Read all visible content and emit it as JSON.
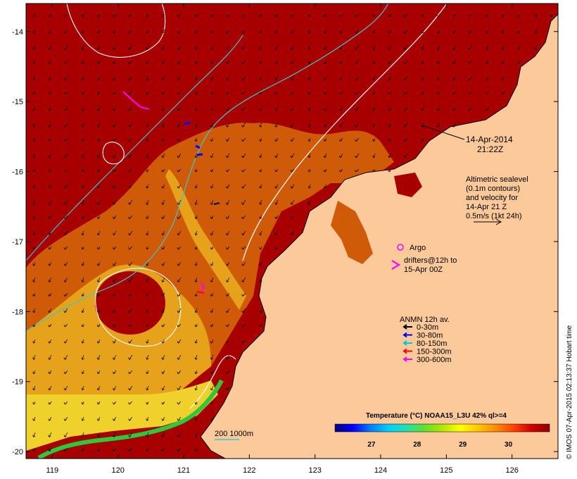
{
  "map": {
    "lon_range": [
      118.6,
      126.7
    ],
    "lat_range": [
      -20.1,
      -13.6
    ],
    "x_ticks": [
      119,
      120,
      121,
      122,
      123,
      124,
      125,
      126
    ],
    "y_ticks": [
      -14,
      -15,
      -16,
      -17,
      -18,
      -19,
      -20
    ],
    "x_tick_labels": [
      "119",
      "120",
      "121",
      "122",
      "123",
      "124",
      "125",
      "126"
    ],
    "y_tick_labels": [
      "-14",
      "-15",
      "-16",
      "-17",
      "-18",
      "-19",
      "-20"
    ],
    "colors": {
      "land": "#fbc99a",
      "sea_warm": "#a80000",
      "sea_mid": "#cf5a08",
      "sea_cool": "#e5a21a",
      "sea_coast": "#f0d02a",
      "coast_band": "#2fc83a",
      "contour_200": "#3cc8c8",
      "contour_1000": "#ffffff"
    }
  },
  "annotations": {
    "date_line1": "14-Apr-2014",
    "date_line2": "21:22Z",
    "altimetry_line1": "Altimetric sealevel",
    "altimetry_line2": "(0.1m contours)",
    "altimetry_line3": "and velocity for",
    "altimetry_line4": "14-Apr 21 Z",
    "altimetry_line5": "0.5m/s (1kt 24h)",
    "argo_label": "Argo",
    "drifters_line1": "drifters@12h to",
    "drifters_line2": "15-Apr 00Z",
    "anmn_title": "ANMN 12h av.",
    "depth_label": "200  1000m"
  },
  "anmn_legend": [
    {
      "label": "0-30m",
      "color": "#000000"
    },
    {
      "label": "30-80m",
      "color": "#0000ff"
    },
    {
      "label": "80-150m",
      "color": "#00c8c8"
    },
    {
      "label": "150-300m",
      "color": "#ff0000"
    },
    {
      "label": "300-600m",
      "color": "#ff00ff"
    }
  ],
  "colorbar": {
    "title": "Temperature (°C) NOAA15_L3U 42% ql>=4",
    "ticks": [
      "27",
      "28",
      "29",
      "30"
    ],
    "tick_values": [
      27,
      28,
      29,
      30
    ],
    "range": [
      26.2,
      30.9
    ],
    "colors": [
      "#00007a",
      "#0000ff",
      "#007fff",
      "#00cfff",
      "#20e0b0",
      "#60e030",
      "#b0e800",
      "#ffff00",
      "#ffc800",
      "#ff8c00",
      "#ff4000",
      "#d00000",
      "#8c0000"
    ]
  },
  "credit": "© IMOS 07-Apr-2015 02:13:37 Hobart time"
}
